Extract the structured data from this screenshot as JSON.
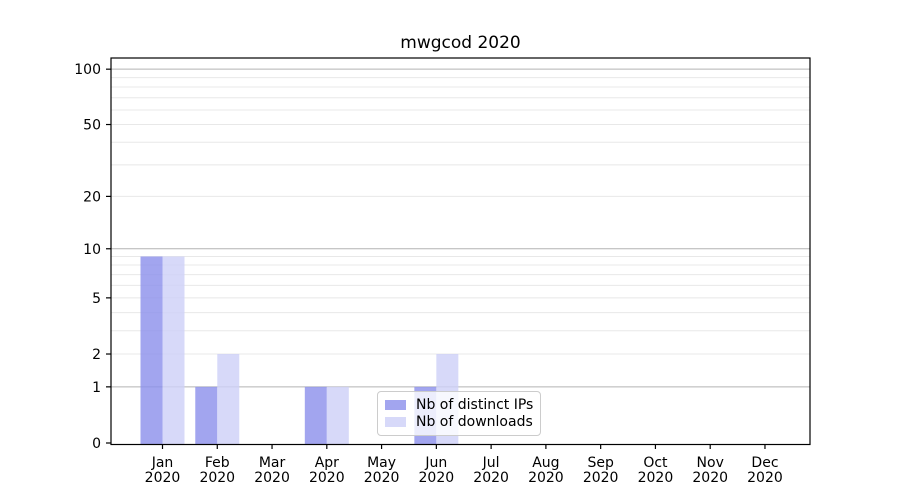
{
  "chart_data": {
    "type": "bar",
    "title": "mwgcod 2020",
    "categories": [
      [
        "Jan",
        "2020"
      ],
      [
        "Feb",
        "2020"
      ],
      [
        "Mar",
        "2020"
      ],
      [
        "Apr",
        "2020"
      ],
      [
        "May",
        "2020"
      ],
      [
        "Jun",
        "2020"
      ],
      [
        "Jul",
        "2020"
      ],
      [
        "Aug",
        "2020"
      ],
      [
        "Sep",
        "2020"
      ],
      [
        "Oct",
        "2020"
      ],
      [
        "Nov",
        "2020"
      ],
      [
        "Dec",
        "2020"
      ]
    ],
    "series": [
      {
        "name": "Nb of distinct IPs",
        "slug": "distinct-ips",
        "color": "#8b8eeb",
        "values": [
          9,
          1,
          0,
          1,
          0,
          1,
          0,
          0,
          0,
          0,
          0,
          0
        ]
      },
      {
        "name": "Nb of downloads",
        "slug": "downloads",
        "color": "#cdd0f7",
        "values": [
          9,
          2,
          0,
          1,
          0,
          2,
          0,
          0,
          0,
          0,
          0,
          0
        ]
      }
    ],
    "yaxis": {
      "scale": "log1p",
      "tick_labels": [
        100,
        50,
        20,
        10,
        5,
        2,
        1,
        0
      ],
      "major_gridlines": [
        1,
        10,
        100
      ],
      "minor_gridlines": [
        2,
        3,
        4,
        5,
        6,
        7,
        8,
        9,
        20,
        30,
        40,
        50,
        60,
        70,
        80,
        90
      ],
      "ylim": [
        0,
        116
      ]
    },
    "legend": {
      "position": "lower-center"
    },
    "grid": true,
    "colors": {
      "minor_grid": "#e8e8e8",
      "major_grid": "#b3b3b3",
      "axis": "#000000",
      "legend_border": "#cccccc"
    }
  }
}
